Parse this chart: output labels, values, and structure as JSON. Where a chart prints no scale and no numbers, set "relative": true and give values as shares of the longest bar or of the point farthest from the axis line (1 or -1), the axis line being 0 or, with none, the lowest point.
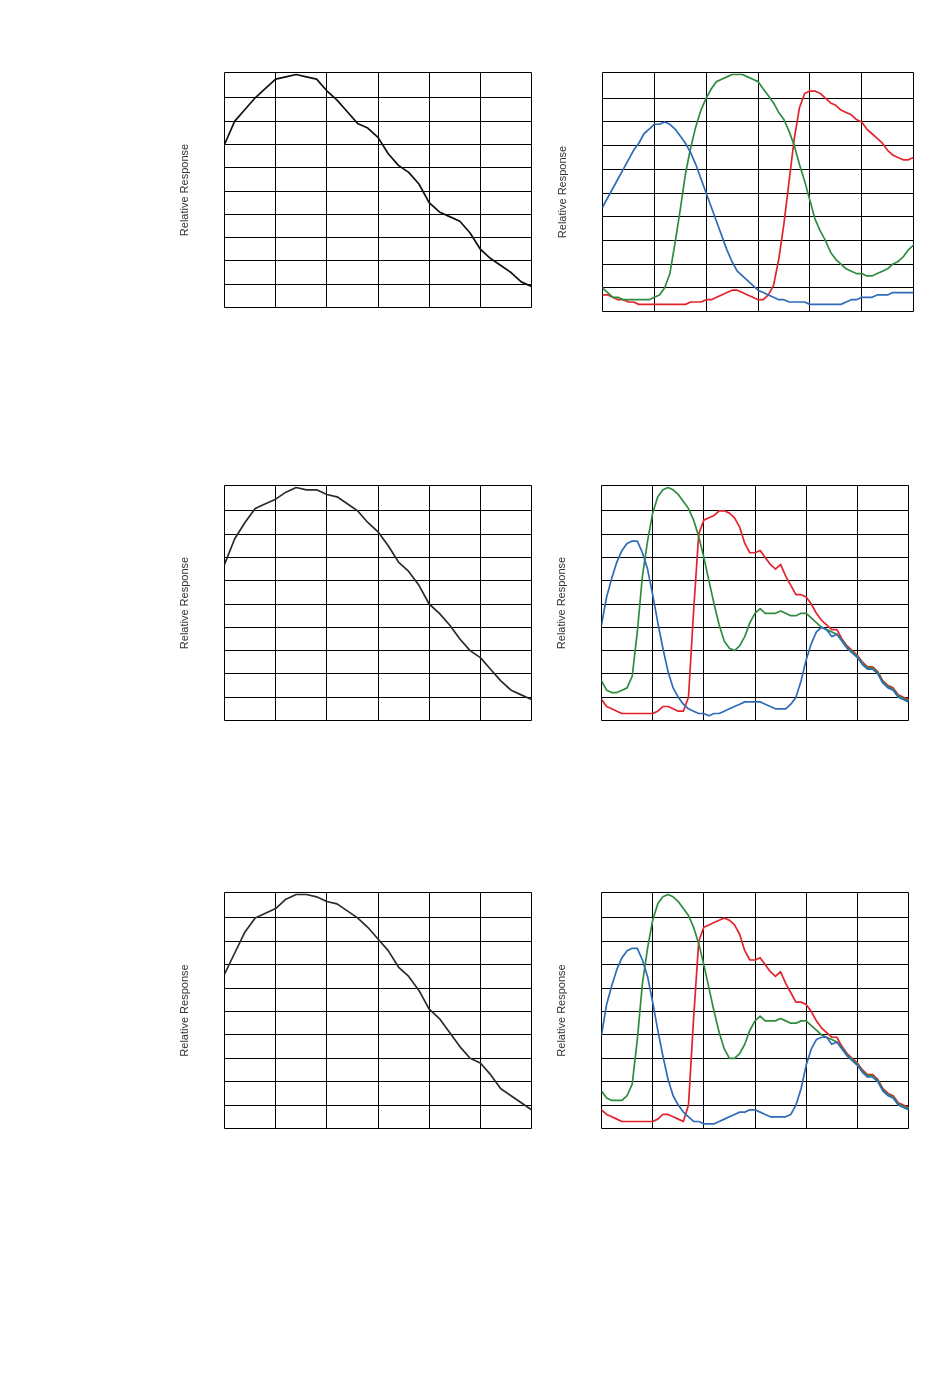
{
  "chart_data": [
    {
      "type": "line",
      "ylabel": "Relative Response",
      "relative": true,
      "grid": true,
      "categories": [
        null,
        null,
        null,
        null,
        null,
        null,
        null,
        null,
        null,
        null,
        null,
        null,
        null,
        null,
        null,
        null,
        null,
        null,
        null,
        null,
        null,
        null,
        null,
        null,
        null,
        null,
        null,
        null,
        null,
        null,
        null
      ],
      "series": [
        {
          "color": "#111111",
          "values": [
            0.7,
            0.8,
            0.85,
            0.9,
            0.94,
            0.98,
            0.99,
            1.0,
            0.99,
            0.98,
            0.93,
            0.89,
            0.84,
            0.79,
            0.77,
            0.73,
            0.66,
            0.61,
            0.58,
            0.53,
            0.45,
            0.41,
            0.39,
            0.37,
            0.32,
            0.25,
            0.21,
            0.18,
            0.15,
            0.11,
            0.09
          ]
        }
      ]
    },
    {
      "type": "line",
      "ylabel": "Relative Response",
      "relative": true,
      "grid": true,
      "categories": [
        null,
        null,
        null,
        null,
        null,
        null,
        null,
        null,
        null,
        null,
        null,
        null,
        null,
        null,
        null,
        null,
        null,
        null,
        null,
        null,
        null,
        null,
        null,
        null,
        null,
        null,
        null,
        null,
        null,
        null,
        null,
        null,
        null,
        null,
        null,
        null,
        null,
        null,
        null,
        null,
        null,
        null,
        null,
        null,
        null,
        null,
        null,
        null,
        null,
        null,
        null,
        null,
        null,
        null,
        null,
        null,
        null,
        null,
        null,
        null,
        null
      ],
      "series": [
        {
          "color": "#e3232c",
          "values": [
            0.07,
            0.07,
            0.06,
            0.05,
            0.05,
            0.04,
            0.04,
            0.03,
            0.03,
            0.03,
            0.03,
            0.03,
            0.03,
            0.03,
            0.03,
            0.03,
            0.03,
            0.04,
            0.04,
            0.04,
            0.05,
            0.05,
            0.06,
            0.07,
            0.08,
            0.09,
            0.09,
            0.08,
            0.07,
            0.06,
            0.05,
            0.05,
            0.07,
            0.11,
            0.22,
            0.37,
            0.55,
            0.73,
            0.86,
            0.92,
            0.93,
            0.93,
            0.92,
            0.9,
            0.88,
            0.87,
            0.85,
            0.84,
            0.83,
            0.81,
            0.8,
            0.77,
            0.75,
            0.73,
            0.71,
            0.68,
            0.66,
            0.65,
            0.64,
            0.64,
            0.65
          ]
        },
        {
          "color": "#2f8c3f",
          "values": [
            0.1,
            0.08,
            0.06,
            0.06,
            0.05,
            0.05,
            0.05,
            0.05,
            0.05,
            0.05,
            0.06,
            0.07,
            0.1,
            0.16,
            0.29,
            0.43,
            0.58,
            0.69,
            0.78,
            0.85,
            0.9,
            0.94,
            0.97,
            0.98,
            0.99,
            1.0,
            1.0,
            1.0,
            0.99,
            0.98,
            0.97,
            0.94,
            0.91,
            0.88,
            0.84,
            0.81,
            0.76,
            0.7,
            0.62,
            0.55,
            0.47,
            0.39,
            0.34,
            0.3,
            0.25,
            0.22,
            0.2,
            0.18,
            0.17,
            0.16,
            0.16,
            0.15,
            0.15,
            0.16,
            0.17,
            0.18,
            0.2,
            0.21,
            0.23,
            0.26,
            0.28
          ]
        },
        {
          "color": "#2e6bb8",
          "values": [
            0.44,
            0.48,
            0.52,
            0.56,
            0.6,
            0.64,
            0.68,
            0.71,
            0.75,
            0.77,
            0.79,
            0.79,
            0.8,
            0.79,
            0.77,
            0.74,
            0.71,
            0.67,
            0.62,
            0.56,
            0.5,
            0.44,
            0.38,
            0.32,
            0.26,
            0.21,
            0.17,
            0.15,
            0.13,
            0.11,
            0.09,
            0.08,
            0.07,
            0.06,
            0.05,
            0.05,
            0.04,
            0.04,
            0.04,
            0.04,
            0.03,
            0.03,
            0.03,
            0.03,
            0.03,
            0.03,
            0.03,
            0.04,
            0.05,
            0.05,
            0.06,
            0.06,
            0.06,
            0.07,
            0.07,
            0.07,
            0.08,
            0.08,
            0.08,
            0.08,
            0.08
          ]
        }
      ]
    },
    {
      "type": "line",
      "ylabel": "Relative Response",
      "relative": true,
      "grid": true,
      "categories": [
        null,
        null,
        null,
        null,
        null,
        null,
        null,
        null,
        null,
        null,
        null,
        null,
        null,
        null,
        null,
        null,
        null,
        null,
        null,
        null,
        null,
        null,
        null,
        null,
        null,
        null,
        null,
        null,
        null,
        null,
        null
      ],
      "series": [
        {
          "color": "#2b2b2b",
          "values": [
            0.67,
            0.78,
            0.85,
            0.91,
            0.93,
            0.95,
            0.98,
            1.0,
            0.99,
            0.99,
            0.97,
            0.96,
            0.93,
            0.9,
            0.85,
            0.81,
            0.75,
            0.68,
            0.64,
            0.58,
            0.5,
            0.46,
            0.41,
            0.35,
            0.3,
            0.27,
            0.22,
            0.17,
            0.13,
            0.11,
            0.09
          ]
        }
      ]
    },
    {
      "type": "line",
      "ylabel": "Relative Response",
      "relative": true,
      "grid": true,
      "categories": [
        null,
        null,
        null,
        null,
        null,
        null,
        null,
        null,
        null,
        null,
        null,
        null,
        null,
        null,
        null,
        null,
        null,
        null,
        null,
        null,
        null,
        null,
        null,
        null,
        null,
        null,
        null,
        null,
        null,
        null,
        null,
        null,
        null,
        null,
        null,
        null,
        null,
        null,
        null,
        null,
        null,
        null,
        null,
        null,
        null,
        null,
        null,
        null,
        null,
        null,
        null,
        null,
        null,
        null,
        null,
        null,
        null,
        null,
        null,
        null,
        null
      ],
      "series": [
        {
          "color": "#e3232c",
          "values": [
            0.09,
            0.06,
            0.05,
            0.04,
            0.03,
            0.03,
            0.03,
            0.03,
            0.03,
            0.03,
            0.03,
            0.04,
            0.06,
            0.06,
            0.05,
            0.04,
            0.04,
            0.1,
            0.47,
            0.8,
            0.86,
            0.87,
            0.88,
            0.9,
            0.9,
            0.89,
            0.87,
            0.83,
            0.76,
            0.72,
            0.72,
            0.73,
            0.7,
            0.67,
            0.65,
            0.67,
            0.62,
            0.58,
            0.54,
            0.54,
            0.53,
            0.5,
            0.46,
            0.43,
            0.41,
            0.39,
            0.39,
            0.35,
            0.32,
            0.3,
            0.28,
            0.25,
            0.23,
            0.23,
            0.21,
            0.17,
            0.15,
            0.14,
            0.11,
            0.1,
            0.09
          ]
        },
        {
          "color": "#2f8c3f",
          "values": [
            0.17,
            0.13,
            0.12,
            0.12,
            0.13,
            0.14,
            0.19,
            0.38,
            0.62,
            0.77,
            0.89,
            0.96,
            0.99,
            1.0,
            0.99,
            0.97,
            0.94,
            0.91,
            0.86,
            0.79,
            0.7,
            0.6,
            0.5,
            0.41,
            0.34,
            0.31,
            0.3,
            0.32,
            0.36,
            0.42,
            0.46,
            0.48,
            0.46,
            0.46,
            0.46,
            0.47,
            0.46,
            0.45,
            0.45,
            0.46,
            0.46,
            0.44,
            0.42,
            0.4,
            0.39,
            0.38,
            0.37,
            0.345,
            0.315,
            0.295,
            0.275,
            0.245,
            0.225,
            0.225,
            0.205,
            0.165,
            0.145,
            0.135,
            0.105,
            0.095,
            0.085
          ]
        },
        {
          "color": "#2e6bb8",
          "values": [
            0.41,
            0.53,
            0.61,
            0.68,
            0.73,
            0.76,
            0.77,
            0.77,
            0.72,
            0.65,
            0.54,
            0.42,
            0.31,
            0.21,
            0.14,
            0.1,
            0.07,
            0.05,
            0.04,
            0.03,
            0.03,
            0.02,
            0.03,
            0.03,
            0.04,
            0.05,
            0.06,
            0.07,
            0.08,
            0.08,
            0.08,
            0.08,
            0.07,
            0.06,
            0.05,
            0.05,
            0.05,
            0.07,
            0.1,
            0.17,
            0.26,
            0.33,
            0.38,
            0.4,
            0.39,
            0.36,
            0.37,
            0.34,
            0.31,
            0.29,
            0.27,
            0.24,
            0.22,
            0.22,
            0.2,
            0.16,
            0.14,
            0.13,
            0.1,
            0.09,
            0.08
          ]
        }
      ]
    },
    {
      "type": "line",
      "ylabel": "Relative Response",
      "relative": true,
      "grid": true,
      "categories": [
        null,
        null,
        null,
        null,
        null,
        null,
        null,
        null,
        null,
        null,
        null,
        null,
        null,
        null,
        null,
        null,
        null,
        null,
        null,
        null,
        null,
        null,
        null,
        null,
        null,
        null,
        null,
        null,
        null,
        null,
        null
      ],
      "series": [
        {
          "color": "#2b2b2b",
          "values": [
            0.66,
            0.75,
            0.84,
            0.9,
            0.92,
            0.94,
            0.98,
            1.0,
            1.0,
            0.99,
            0.97,
            0.96,
            0.93,
            0.9,
            0.86,
            0.81,
            0.76,
            0.69,
            0.65,
            0.59,
            0.51,
            0.47,
            0.41,
            0.35,
            0.3,
            0.28,
            0.23,
            0.17,
            0.14,
            0.11,
            0.08
          ]
        }
      ]
    },
    {
      "type": "line",
      "ylabel": "Relative Response",
      "relative": true,
      "grid": true,
      "categories": [
        null,
        null,
        null,
        null,
        null,
        null,
        null,
        null,
        null,
        null,
        null,
        null,
        null,
        null,
        null,
        null,
        null,
        null,
        null,
        null,
        null,
        null,
        null,
        null,
        null,
        null,
        null,
        null,
        null,
        null,
        null,
        null,
        null,
        null,
        null,
        null,
        null,
        null,
        null,
        null,
        null,
        null,
        null,
        null,
        null,
        null,
        null,
        null,
        null,
        null,
        null,
        null,
        null,
        null,
        null,
        null,
        null,
        null,
        null,
        null,
        null
      ],
      "series": [
        {
          "color": "#e3232c",
          "values": [
            0.08,
            0.06,
            0.05,
            0.04,
            0.03,
            0.03,
            0.03,
            0.03,
            0.03,
            0.03,
            0.03,
            0.04,
            0.06,
            0.06,
            0.05,
            0.04,
            0.03,
            0.1,
            0.47,
            0.8,
            0.86,
            0.87,
            0.88,
            0.89,
            0.9,
            0.89,
            0.87,
            0.83,
            0.76,
            0.72,
            0.72,
            0.73,
            0.7,
            0.67,
            0.65,
            0.67,
            0.62,
            0.58,
            0.54,
            0.54,
            0.53,
            0.5,
            0.46,
            0.43,
            0.41,
            0.39,
            0.39,
            0.35,
            0.32,
            0.3,
            0.28,
            0.25,
            0.23,
            0.23,
            0.21,
            0.17,
            0.15,
            0.14,
            0.11,
            0.1,
            0.09
          ]
        },
        {
          "color": "#2f8c3f",
          "values": [
            0.16,
            0.13,
            0.12,
            0.12,
            0.12,
            0.14,
            0.19,
            0.38,
            0.62,
            0.77,
            0.89,
            0.96,
            0.99,
            1.0,
            0.99,
            0.97,
            0.94,
            0.91,
            0.86,
            0.79,
            0.7,
            0.6,
            0.5,
            0.41,
            0.34,
            0.3,
            0.3,
            0.32,
            0.36,
            0.42,
            0.46,
            0.48,
            0.46,
            0.46,
            0.46,
            0.47,
            0.46,
            0.45,
            0.45,
            0.46,
            0.46,
            0.44,
            0.42,
            0.4,
            0.39,
            0.38,
            0.37,
            0.345,
            0.315,
            0.295,
            0.275,
            0.245,
            0.225,
            0.225,
            0.205,
            0.165,
            0.145,
            0.135,
            0.105,
            0.095,
            0.085
          ]
        },
        {
          "color": "#2e6bb8",
          "values": [
            0.4,
            0.53,
            0.61,
            0.68,
            0.73,
            0.76,
            0.77,
            0.77,
            0.72,
            0.65,
            0.54,
            0.42,
            0.31,
            0.21,
            0.14,
            0.1,
            0.07,
            0.05,
            0.03,
            0.03,
            0.02,
            0.02,
            0.02,
            0.03,
            0.04,
            0.05,
            0.06,
            0.07,
            0.07,
            0.08,
            0.08,
            0.07,
            0.06,
            0.05,
            0.05,
            0.05,
            0.05,
            0.06,
            0.1,
            0.17,
            0.27,
            0.34,
            0.38,
            0.39,
            0.39,
            0.36,
            0.37,
            0.34,
            0.31,
            0.29,
            0.27,
            0.24,
            0.22,
            0.22,
            0.2,
            0.16,
            0.14,
            0.13,
            0.1,
            0.09,
            0.08
          ]
        }
      ]
    }
  ]
}
